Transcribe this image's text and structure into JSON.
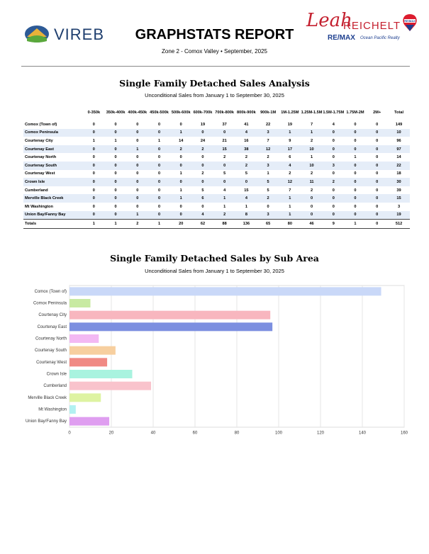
{
  "header": {
    "logo": "VIREB",
    "title": "GRAPHSTATS REPORT",
    "subtitle": "Zone 2 - Comox Valley • September, 2025",
    "agent_first": "Leah",
    "agent_last": "REICHELT",
    "brokerage": "RE/MAX",
    "brokerage_sub": "Ocean Pacific Realty",
    "balloon": "RE/MAX"
  },
  "table": {
    "title": "Single Family Detached Sales Analysis",
    "subtitle": "Unconditional Sales from January 1 to September 30, 2025",
    "columns": [
      "0-350k",
      "350k-400k",
      "400k-450k",
      "450k-500k",
      "500k-600k",
      "600k-700k",
      "700k-800k",
      "800k-900k",
      "900k-1M",
      "1M-1.25M",
      "1.25M-1.5M",
      "1.5M-1.75M",
      "1.75M-2M",
      "2M+",
      "Total"
    ],
    "rows": [
      [
        "Comox (Town of)",
        0,
        0,
        0,
        0,
        0,
        19,
        37,
        41,
        22,
        19,
        7,
        4,
        0,
        0,
        149
      ],
      [
        "Comox Peninsula",
        0,
        0,
        0,
        0,
        1,
        0,
        0,
        4,
        3,
        1,
        1,
        0,
        0,
        0,
        10
      ],
      [
        "Courtenay City",
        1,
        1,
        0,
        1,
        14,
        24,
        21,
        16,
        7,
        9,
        2,
        0,
        0,
        0,
        96
      ],
      [
        "Courtenay East",
        0,
        0,
        1,
        0,
        2,
        2,
        15,
        38,
        12,
        17,
        10,
        0,
        0,
        0,
        97
      ],
      [
        "Courtenay North",
        0,
        0,
        0,
        0,
        0,
        0,
        2,
        2,
        2,
        6,
        1,
        0,
        1,
        0,
        14
      ],
      [
        "Courtenay South",
        0,
        0,
        0,
        0,
        0,
        0,
        0,
        2,
        3,
        4,
        10,
        3,
        0,
        0,
        22
      ],
      [
        "Courtenay West",
        0,
        0,
        0,
        0,
        1,
        2,
        5,
        5,
        1,
        2,
        2,
        0,
        0,
        0,
        18
      ],
      [
        "Crown Isle",
        0,
        0,
        0,
        0,
        0,
        0,
        0,
        0,
        5,
        12,
        11,
        2,
        0,
        0,
        30
      ],
      [
        "Cumberland",
        0,
        0,
        0,
        0,
        1,
        5,
        4,
        15,
        5,
        7,
        2,
        0,
        0,
        0,
        39
      ],
      [
        "Merville Black Creek",
        0,
        0,
        0,
        0,
        1,
        6,
        1,
        4,
        2,
        1,
        0,
        0,
        0,
        0,
        15
      ],
      [
        "Mt Washington",
        0,
        0,
        0,
        0,
        0,
        0,
        1,
        1,
        0,
        1,
        0,
        0,
        0,
        0,
        3
      ],
      [
        "Union Bay/Fanny Bay",
        0,
        0,
        1,
        0,
        0,
        4,
        2,
        8,
        3,
        1,
        0,
        0,
        0,
        0,
        19
      ],
      [
        "Totals",
        1,
        1,
        2,
        1,
        20,
        62,
        88,
        136,
        65,
        80,
        46,
        9,
        1,
        0,
        512
      ]
    ]
  },
  "chart_data": {
    "type": "bar",
    "orientation": "horizontal",
    "title": "Single Family Detached Sales by Sub Area",
    "subtitle": "Unconditional Sales from January 1 to September 30, 2025",
    "categories": [
      "Comox (Town of)",
      "Comox Peninsula",
      "Courtenay City",
      "Courtenay East",
      "Courtenay North",
      "Courtenay South",
      "Courtenay West",
      "Crown Isle",
      "Cumberland",
      "Merville Black Creek",
      "Mt Washington",
      "Union Bay/Fanny Bay"
    ],
    "values": [
      149,
      10,
      96,
      97,
      14,
      22,
      18,
      30,
      39,
      15,
      3,
      19
    ],
    "colors": [
      "#c9d8f8",
      "#c8eaa2",
      "#f8b6bf",
      "#7c8fe0",
      "#f3b8f3",
      "#f7cf9f",
      "#f08a84",
      "#a9f3df",
      "#f9c3cc",
      "#def3a2",
      "#b2f1f1",
      "#df9ef0"
    ],
    "xlim": [
      0,
      160
    ],
    "xticks": [
      0,
      20,
      40,
      60,
      80,
      100,
      120,
      140,
      160
    ],
    "grid": true
  }
}
